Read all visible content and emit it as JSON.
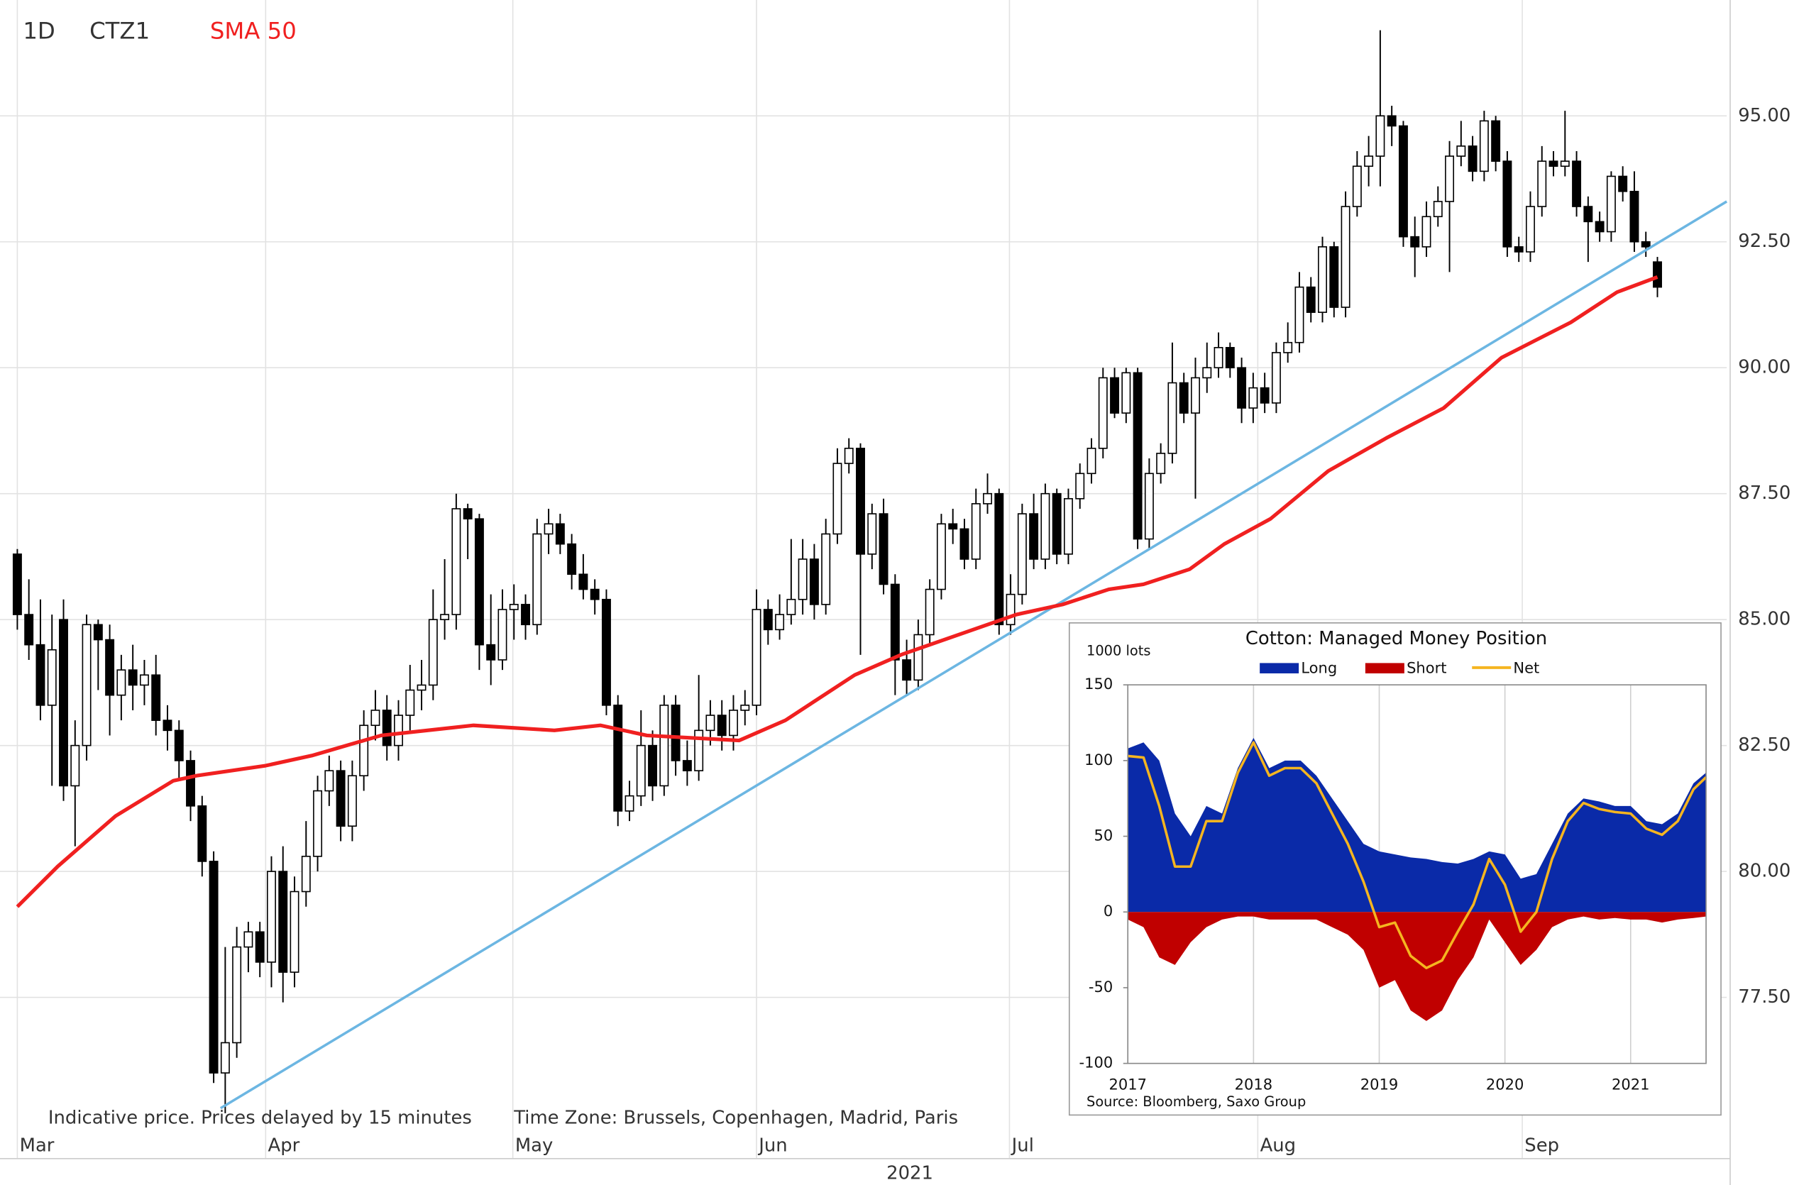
{
  "chart_data": [
    {
      "type": "candlestick",
      "interval": "1D",
      "symbol": "CTZ1",
      "xlabel": "2021",
      "notes": [
        "Indicative price. Prices delayed by 15 minutes",
        "Time Zone: Brussels, Copenhagen, Madrid, Paris"
      ],
      "color_up": "#ffffff",
      "color_down": "#000000",
      "ohlc": [
        [
          86.3,
          86.4,
          84.8,
          85.1
        ],
        [
          85.1,
          85.8,
          84.2,
          84.5
        ],
        [
          84.5,
          85.4,
          83.0,
          83.3
        ],
        [
          83.3,
          85.1,
          81.7,
          84.4
        ],
        [
          85.0,
          85.4,
          81.4,
          81.7
        ],
        [
          81.7,
          83.0,
          80.5,
          82.5
        ],
        [
          82.5,
          85.1,
          82.2,
          84.9
        ],
        [
          84.9,
          85.0,
          83.6,
          84.6
        ],
        [
          84.6,
          84.9,
          82.7,
          83.5
        ],
        [
          83.5,
          84.3,
          83.0,
          84.0
        ],
        [
          84.0,
          84.5,
          83.2,
          83.7
        ],
        [
          83.7,
          84.2,
          83.3,
          83.9
        ],
        [
          83.9,
          84.3,
          82.7,
          83.0
        ],
        [
          83.0,
          83.3,
          82.4,
          82.8
        ],
        [
          82.8,
          83.0,
          81.8,
          82.2
        ],
        [
          82.2,
          82.4,
          81.0,
          81.3
        ],
        [
          81.3,
          81.5,
          79.9,
          80.2
        ],
        [
          80.2,
          80.4,
          75.8,
          76.0
        ],
        [
          76.0,
          78.5,
          75.2,
          76.6
        ],
        [
          76.6,
          78.9,
          76.3,
          78.5
        ],
        [
          78.5,
          79.0,
          78.0,
          78.8
        ],
        [
          78.8,
          79.0,
          77.9,
          78.2
        ],
        [
          78.2,
          80.3,
          77.7,
          80.0
        ],
        [
          80.0,
          80.5,
          77.4,
          78.0
        ],
        [
          78.0,
          79.9,
          77.7,
          79.6
        ],
        [
          79.6,
          81.0,
          79.3,
          80.3
        ],
        [
          80.3,
          81.9,
          80.0,
          81.6
        ],
        [
          81.6,
          82.3,
          81.3,
          82.0
        ],
        [
          82.0,
          82.2,
          80.6,
          80.9
        ],
        [
          80.9,
          82.2,
          80.6,
          81.9
        ],
        [
          81.9,
          83.2,
          81.6,
          82.9
        ],
        [
          82.9,
          83.6,
          82.6,
          83.2
        ],
        [
          83.2,
          83.5,
          82.2,
          82.5
        ],
        [
          82.5,
          83.4,
          82.2,
          83.1
        ],
        [
          83.1,
          84.1,
          82.8,
          83.6
        ],
        [
          83.6,
          84.2,
          83.2,
          83.7
        ],
        [
          83.7,
          85.6,
          83.4,
          85.0
        ],
        [
          85.0,
          86.2,
          84.6,
          85.1
        ],
        [
          85.1,
          87.5,
          84.8,
          87.2
        ],
        [
          87.2,
          87.3,
          86.2,
          87.0
        ],
        [
          87.0,
          87.1,
          84.0,
          84.5
        ],
        [
          84.5,
          85.5,
          83.7,
          84.2
        ],
        [
          84.2,
          85.6,
          84.0,
          85.2
        ],
        [
          85.2,
          85.7,
          84.6,
          85.3
        ],
        [
          85.3,
          85.5,
          84.6,
          84.9
        ],
        [
          84.9,
          87.0,
          84.7,
          86.7
        ],
        [
          86.7,
          87.2,
          86.3,
          86.9
        ],
        [
          86.9,
          87.1,
          86.3,
          86.5
        ],
        [
          86.5,
          86.7,
          85.6,
          85.9
        ],
        [
          85.9,
          86.3,
          85.4,
          85.6
        ],
        [
          85.6,
          85.8,
          85.1,
          85.4
        ],
        [
          85.4,
          85.6,
          83.1,
          83.3
        ],
        [
          83.3,
          83.5,
          80.9,
          81.2
        ],
        [
          81.2,
          81.8,
          81.0,
          81.5
        ],
        [
          81.5,
          83.2,
          81.3,
          82.5
        ],
        [
          82.5,
          82.8,
          81.4,
          81.7
        ],
        [
          81.7,
          83.5,
          81.5,
          83.3
        ],
        [
          83.3,
          83.5,
          81.9,
          82.2
        ],
        [
          82.2,
          82.6,
          81.7,
          82.0
        ],
        [
          82.0,
          83.9,
          81.8,
          82.8
        ],
        [
          82.8,
          83.4,
          82.5,
          83.1
        ],
        [
          83.1,
          83.4,
          82.4,
          82.7
        ],
        [
          82.7,
          83.5,
          82.4,
          83.2
        ],
        [
          83.2,
          83.6,
          82.9,
          83.3
        ],
        [
          83.3,
          85.6,
          83.1,
          85.2
        ],
        [
          85.2,
          85.4,
          84.5,
          84.8
        ],
        [
          84.8,
          85.5,
          84.6,
          85.1
        ],
        [
          85.1,
          86.6,
          84.9,
          85.4
        ],
        [
          85.4,
          86.6,
          85.1,
          86.2
        ],
        [
          86.2,
          86.5,
          85.0,
          85.3
        ],
        [
          85.3,
          87.0,
          85.1,
          86.7
        ],
        [
          86.7,
          88.4,
          86.5,
          88.1
        ],
        [
          88.1,
          88.6,
          87.9,
          88.4
        ],
        [
          88.4,
          88.5,
          84.3,
          86.3
        ],
        [
          86.3,
          87.3,
          86.0,
          87.1
        ],
        [
          87.1,
          87.4,
          85.5,
          85.7
        ],
        [
          85.7,
          85.9,
          83.5,
          84.2
        ],
        [
          84.2,
          84.6,
          83.5,
          83.8
        ],
        [
          83.8,
          85.0,
          83.6,
          84.7
        ],
        [
          84.7,
          85.8,
          84.5,
          85.6
        ],
        [
          85.6,
          87.1,
          85.4,
          86.9
        ],
        [
          86.9,
          87.2,
          86.5,
          86.8
        ],
        [
          86.8,
          87.0,
          86.0,
          86.2
        ],
        [
          86.2,
          87.6,
          86.0,
          87.3
        ],
        [
          87.3,
          87.9,
          87.1,
          87.5
        ],
        [
          87.5,
          87.6,
          84.7,
          84.9
        ],
        [
          84.9,
          85.9,
          84.7,
          85.5
        ],
        [
          85.5,
          87.3,
          85.3,
          87.1
        ],
        [
          87.1,
          87.5,
          86.0,
          86.2
        ],
        [
          86.2,
          87.7,
          86.0,
          87.5
        ],
        [
          87.5,
          87.6,
          86.1,
          86.3
        ],
        [
          86.3,
          87.6,
          86.1,
          87.4
        ],
        [
          87.4,
          88.1,
          87.2,
          87.9
        ],
        [
          87.9,
          88.6,
          87.7,
          88.4
        ],
        [
          88.4,
          90.0,
          88.2,
          89.8
        ],
        [
          89.8,
          90.0,
          89.0,
          89.1
        ],
        [
          89.1,
          90.0,
          88.9,
          89.9
        ],
        [
          89.9,
          90.0,
          86.4,
          86.6
        ],
        [
          86.6,
          88.2,
          86.4,
          87.9
        ],
        [
          87.9,
          88.5,
          87.7,
          88.3
        ],
        [
          88.3,
          90.5,
          88.1,
          89.7
        ],
        [
          89.7,
          89.9,
          88.9,
          89.1
        ],
        [
          89.1,
          90.2,
          87.4,
          89.8
        ],
        [
          89.8,
          90.5,
          89.5,
          90.0
        ],
        [
          90.0,
          90.7,
          89.8,
          90.4
        ],
        [
          90.4,
          90.5,
          89.8,
          90.0
        ],
        [
          90.0,
          90.2,
          88.9,
          89.2
        ],
        [
          89.2,
          89.9,
          88.9,
          89.6
        ],
        [
          89.6,
          89.9,
          89.1,
          89.3
        ],
        [
          89.3,
          90.5,
          89.1,
          90.3
        ],
        [
          90.3,
          90.9,
          90.1,
          90.5
        ],
        [
          90.5,
          91.9,
          90.3,
          91.6
        ],
        [
          91.6,
          91.8,
          90.9,
          91.1
        ],
        [
          91.1,
          92.6,
          90.9,
          92.4
        ],
        [
          92.4,
          92.5,
          91.0,
          91.2
        ],
        [
          91.2,
          93.5,
          91.0,
          93.2
        ],
        [
          93.2,
          94.3,
          93.0,
          94.0
        ],
        [
          94.0,
          94.6,
          93.6,
          94.2
        ],
        [
          94.2,
          96.7,
          93.6,
          95.0
        ],
        [
          95.0,
          95.2,
          94.4,
          94.8
        ],
        [
          94.8,
          94.9,
          92.4,
          92.6
        ],
        [
          92.6,
          93.0,
          91.8,
          92.4
        ],
        [
          92.4,
          93.3,
          92.2,
          93.0
        ],
        [
          93.0,
          93.6,
          92.8,
          93.3
        ],
        [
          93.3,
          94.5,
          91.9,
          94.2
        ],
        [
          94.2,
          94.9,
          94.0,
          94.4
        ],
        [
          94.4,
          94.6,
          93.7,
          93.9
        ],
        [
          93.9,
          95.1,
          93.7,
          94.9
        ],
        [
          94.9,
          95.0,
          93.9,
          94.1
        ],
        [
          94.1,
          94.3,
          92.2,
          92.4
        ],
        [
          92.4,
          92.6,
          92.1,
          92.3
        ],
        [
          92.3,
          93.5,
          92.1,
          93.2
        ],
        [
          93.2,
          94.4,
          93.0,
          94.1
        ],
        [
          94.1,
          94.3,
          93.8,
          94.0
        ],
        [
          94.0,
          95.1,
          93.8,
          94.1
        ],
        [
          94.1,
          94.3,
          93.0,
          93.2
        ],
        [
          93.2,
          93.4,
          92.1,
          92.9
        ],
        [
          92.9,
          93.1,
          92.5,
          92.7
        ],
        [
          92.7,
          93.9,
          92.5,
          93.8
        ],
        [
          93.8,
          94.0,
          93.3,
          93.5
        ],
        [
          93.5,
          93.9,
          92.3,
          92.5
        ],
        [
          92.5,
          92.7,
          92.2,
          92.4
        ],
        [
          92.1,
          92.2,
          91.4,
          91.6
        ]
      ],
      "sma": {
        "name": "SMA 50",
        "color": "#f02020",
        "x": [
          0,
          3.5,
          8.5,
          13.5,
          15.5,
          21.5,
          25.5,
          31.5,
          39.5,
          46.5,
          50.5,
          54.5,
          62.5,
          66.5,
          72.5,
          76.5,
          81.5,
          86.5,
          90.5,
          94.5,
          97.5,
          101.5,
          104.5,
          108.5,
          113.5,
          118.5,
          123.5,
          128.5,
          134.5,
          138.5,
          142
        ],
        "values": [
          79.3,
          80.1,
          81.1,
          81.8,
          81.9,
          82.1,
          82.3,
          82.7,
          82.9,
          82.8,
          82.9,
          82.7,
          82.6,
          83.0,
          83.9,
          84.3,
          84.7,
          85.1,
          85.3,
          85.6,
          85.7,
          86.0,
          86.5,
          87.0,
          87.95,
          88.6,
          89.2,
          90.2,
          90.9,
          91.5,
          91.8
        ]
      },
      "trendline": {
        "color": "#6cb6e2",
        "x": [
          17.6,
          148
        ],
        "values": [
          75.3,
          93.3
        ]
      },
      "xlim": [
        -1.5,
        148
      ],
      "ylim": [
        74.8,
        97.3
      ],
      "xticks": [
        {
          "value": 0,
          "label": "Mar"
        },
        {
          "value": 21.5,
          "label": "Apr"
        },
        {
          "value": 42.9,
          "label": "May"
        },
        {
          "value": 64.0,
          "label": "Jun"
        },
        {
          "value": 85.9,
          "label": "Jul"
        },
        {
          "value": 107.4,
          "label": "Aug"
        },
        {
          "value": 130.3,
          "label": "Sep"
        }
      ],
      "yticks": [
        {
          "value": 77.5,
          "label": "77.50"
        },
        {
          "value": 80,
          "label": "80.00"
        },
        {
          "value": 82.5,
          "label": "82.50"
        },
        {
          "value": 85,
          "label": "85.00"
        },
        {
          "value": 87.5,
          "label": "87.50"
        },
        {
          "value": 90,
          "label": "90.00"
        },
        {
          "value": 92.5,
          "label": "92.50"
        },
        {
          "value": 95,
          "label": "95.00"
        }
      ],
      "grid": true
    },
    {
      "type": "area",
      "title": "Cotton: Managed Money Position",
      "ylabel": "1000 lots",
      "source": "Source: Bloomberg, Saxo Group",
      "x": [
        2017,
        2017.125,
        2017.25,
        2017.375,
        2017.5,
        2017.625,
        2017.75,
        2017.875,
        2018,
        2018.125,
        2018.25,
        2018.375,
        2018.5,
        2018.625,
        2018.75,
        2018.875,
        2019,
        2019.125,
        2019.25,
        2019.375,
        2019.5,
        2019.625,
        2019.75,
        2019.875,
        2020,
        2020.125,
        2020.25,
        2020.375,
        2020.5,
        2020.625,
        2020.75,
        2020.875,
        2021,
        2021.125,
        2021.25,
        2021.375,
        2021.5,
        2021.6
      ],
      "series": [
        {
          "name": "Long",
          "color": "#0a2aa8",
          "style": "area",
          "values": [
            108,
            112,
            100,
            65,
            50,
            70,
            65,
            95,
            115,
            95,
            100,
            100,
            90,
            75,
            60,
            45,
            40,
            38,
            36,
            35,
            33,
            32,
            35,
            40,
            38,
            22,
            25,
            45,
            65,
            75,
            73,
            70,
            70,
            60,
            58,
            65,
            85,
            92
          ]
        },
        {
          "name": "Short",
          "color": "#c00000",
          "style": "area",
          "values": [
            -5,
            -10,
            -30,
            -35,
            -20,
            -10,
            -5,
            -3,
            -3,
            -5,
            -5,
            -5,
            -5,
            -10,
            -15,
            -25,
            -50,
            -45,
            -65,
            -72,
            -65,
            -45,
            -30,
            -5,
            -20,
            -35,
            -25,
            -10,
            -5,
            -3,
            -5,
            -4,
            -5,
            -5,
            -7,
            -5,
            -4,
            -3
          ]
        },
        {
          "name": "Net",
          "color": "#f5b520",
          "style": "line",
          "values": [
            103,
            102,
            70,
            30,
            30,
            60,
            60,
            92,
            112,
            90,
            95,
            95,
            85,
            65,
            45,
            20,
            -10,
            -7,
            -29,
            -37,
            -32,
            -13,
            5,
            35,
            18,
            -13,
            0,
            35,
            60,
            72,
            68,
            66,
            65,
            55,
            51,
            60,
            81,
            89
          ]
        }
      ],
      "xlim": [
        2017,
        2021.6
      ],
      "ylim": [
        -100,
        150
      ],
      "xticks": [
        2017,
        2018,
        2019,
        2020,
        2021
      ],
      "yticks": [
        150,
        100,
        50,
        0,
        -50,
        -100
      ],
      "grid": true
    }
  ]
}
